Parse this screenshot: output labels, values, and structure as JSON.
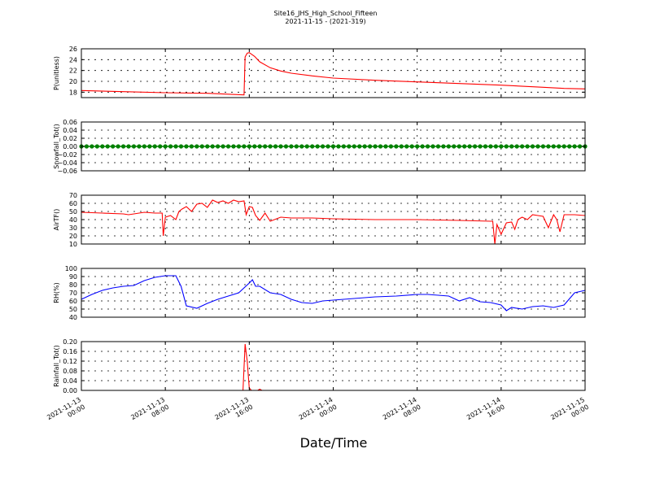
{
  "figure": {
    "title": "Site16_JHS_High_School_Fifteen",
    "subtitle": "2021-11-15 - (2021-319)",
    "xlabel": "Date/Time",
    "x_ticks": [
      {
        "l1": "2021-11-13",
        "l2": "00:00"
      },
      {
        "l1": "2021-11-13",
        "l2": "08:00"
      },
      {
        "l1": "2021-11-13",
        "l2": "16:00"
      },
      {
        "l1": "2021-11-14",
        "l2": "00:00"
      },
      {
        "l1": "2021-11-14",
        "l2": "08:00"
      },
      {
        "l1": "2021-11-14",
        "l2": "16:00"
      },
      {
        "l1": "2021-11-15",
        "l2": "00:00"
      }
    ]
  },
  "chart_data": [
    {
      "type": "line",
      "ylabel": "P(unitless)",
      "ylim": [
        17,
        26
      ],
      "yticks": [
        18,
        20,
        22,
        24,
        26
      ],
      "ytick_labels": [
        "18",
        "20",
        "22",
        "24",
        "26"
      ],
      "color": "#ff0000",
      "xrange_hours": [
        0,
        48
      ],
      "x": [
        0,
        4,
        8,
        12,
        15.5,
        15.6,
        15.8,
        16,
        16.5,
        17,
        18,
        19,
        20,
        22,
        24,
        28,
        32,
        36,
        40,
        44,
        46,
        48
      ],
      "values": [
        18.3,
        18.1,
        17.9,
        17.8,
        17.5,
        24.5,
        25.2,
        25.3,
        24.6,
        23.6,
        22.5,
        21.9,
        21.5,
        21.0,
        20.6,
        20.2,
        19.9,
        19.6,
        19.3,
        18.9,
        18.7,
        18.6
      ]
    },
    {
      "type": "line",
      "ylabel": "Snowfall_Tot()",
      "ylim": [
        -0.06,
        0.06
      ],
      "yticks": [
        -0.06,
        -0.04,
        -0.02,
        0,
        0.02,
        0.04,
        0.06
      ],
      "ytick_labels": [
        "−0.06",
        "−0.04",
        "−0.02",
        "0.00",
        "0.02",
        "0.04",
        "0.06"
      ],
      "color": "#008000",
      "markers": true,
      "xrange_hours": [
        0,
        48
      ],
      "x": [
        0,
        48
      ],
      "values": [
        0,
        0
      ]
    },
    {
      "type": "line",
      "ylabel": "AirTF()",
      "ylim": [
        10,
        70
      ],
      "yticks": [
        10,
        20,
        30,
        40,
        50,
        60,
        70
      ],
      "ytick_labels": [
        "10",
        "20",
        "30",
        "40",
        "50",
        "60",
        "70"
      ],
      "color": "#ff0000",
      "xrange_hours": [
        0,
        48
      ],
      "x": [
        0,
        2,
        4,
        4.5,
        5,
        6,
        7,
        7.5,
        7.7,
        7.8,
        8,
        8.5,
        9,
        9.3,
        9.6,
        10,
        10.5,
        11,
        11.5,
        12,
        12.5,
        13,
        13.5,
        14,
        14.5,
        15,
        15.5,
        15.7,
        16,
        16.3,
        16.6,
        17,
        17.5,
        18,
        19,
        20,
        22,
        24,
        28,
        32,
        36,
        39,
        39.2,
        39.4,
        39.6,
        40,
        40.5,
        41,
        41.3,
        41.6,
        42,
        42.5,
        43,
        43.5,
        44,
        44.5,
        45,
        45.3,
        45.6,
        46,
        46.5,
        47,
        48
      ],
      "values": [
        49,
        48,
        47,
        46,
        47,
        49,
        48,
        48,
        48,
        20,
        43,
        45,
        40,
        50,
        53,
        56,
        50,
        59,
        60,
        55,
        64,
        61,
        63,
        60,
        64,
        62,
        63,
        46,
        56,
        55,
        45,
        39,
        48,
        38,
        43,
        42,
        42,
        41,
        40,
        40,
        39,
        38,
        38,
        10,
        34,
        22,
        36,
        37,
        28,
        40,
        43,
        40,
        46,
        45,
        44,
        30,
        46,
        40,
        25,
        46,
        46,
        46,
        45
      ]
    },
    {
      "type": "line",
      "ylabel": "RH(%)",
      "ylim": [
        40,
        100
      ],
      "yticks": [
        40,
        50,
        60,
        70,
        80,
        90,
        100
      ],
      "ytick_labels": [
        "40",
        "50",
        "60",
        "70",
        "80",
        "90",
        "100"
      ],
      "color": "#0000ff",
      "xrange_hours": [
        0,
        48
      ],
      "x": [
        0,
        1,
        2,
        3,
        4,
        5,
        6,
        7,
        8,
        9,
        9.5,
        10,
        11,
        12,
        13,
        14,
        15,
        16,
        16.3,
        16.6,
        17,
        18,
        19,
        20,
        21,
        22,
        23,
        24,
        26,
        28,
        30,
        32,
        33,
        34,
        35,
        36,
        37,
        38,
        39,
        40,
        40.5,
        41,
        42,
        43,
        44,
        45,
        46,
        47,
        48
      ],
      "values": [
        62,
        68,
        73,
        76,
        78,
        79,
        85,
        89,
        91,
        91,
        78,
        54,
        51,
        57,
        62,
        66,
        70,
        82,
        86,
        78,
        78,
        70,
        68,
        62,
        58,
        57,
        60,
        61,
        63,
        65,
        66,
        68,
        68,
        67,
        66,
        60,
        64,
        59,
        58,
        55,
        48,
        52,
        50,
        53,
        54,
        52,
        55,
        70,
        73
      ]
    },
    {
      "type": "line",
      "ylabel": "Rainfall_Tot()",
      "ylim": [
        0,
        0.2
      ],
      "yticks": [
        0,
        0.04,
        0.08,
        0.12,
        0.16,
        0.2
      ],
      "ytick_labels": [
        "0.00",
        "0.04",
        "0.08",
        "0.12",
        "0.16",
        "0.20"
      ],
      "color": "#ff0000",
      "xrange_hours": [
        0,
        48
      ],
      "x": [
        0,
        15.4,
        15.6,
        15.8,
        16,
        16.2,
        16.8,
        17,
        17.2,
        48
      ],
      "values": [
        0,
        0,
        0.19,
        0.12,
        0.01,
        0,
        0,
        0.005,
        0,
        0
      ]
    }
  ]
}
